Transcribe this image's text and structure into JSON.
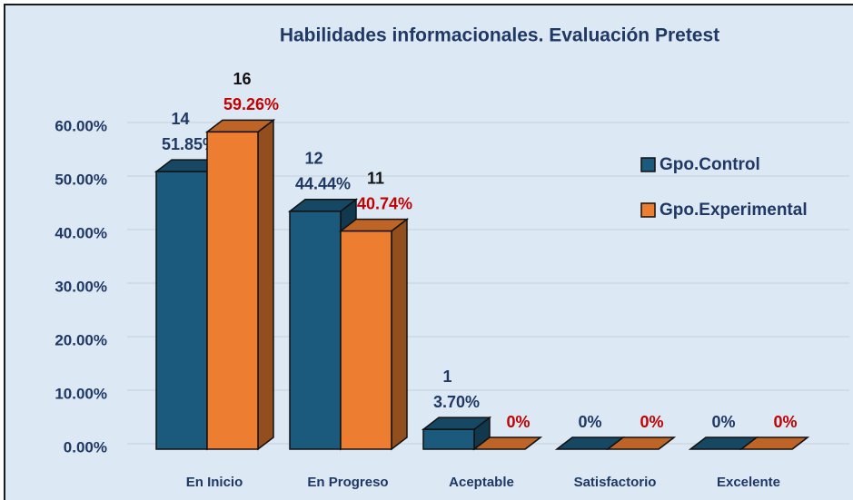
{
  "chart_data": {
    "type": "bar3d",
    "title": "Habilidades informacionales. Evaluación Pretest",
    "categories": [
      "En Inicio",
      "En Progreso",
      "Aceptable",
      "Satisfactorio",
      "Excelente"
    ],
    "series": [
      {
        "name": "Gpo.Control",
        "color": "#1b5a7c",
        "values": [
          51.85,
          44.44,
          3.7,
          0,
          0
        ],
        "value_labels": [
          "51.85%",
          "44.44%",
          "3.70%",
          "0%",
          "0%"
        ],
        "counts": [
          14,
          12,
          1,
          null,
          null
        ]
      },
      {
        "name": "Gpo.Experimental",
        "color": "#ed7d31",
        "values": [
          59.26,
          40.74,
          0,
          0,
          0
        ],
        "value_labels": [
          "59.26%",
          "40.74%",
          "0%",
          "0%",
          "0%"
        ],
        "counts": [
          16,
          11,
          null,
          null,
          null
        ]
      }
    ],
    "ylim": [
      0,
      60
    ],
    "yticks": [
      {
        "value": 0,
        "label": "0.00%"
      },
      {
        "value": 10,
        "label": "10.00%"
      },
      {
        "value": 20,
        "label": "20.00%"
      },
      {
        "value": 30,
        "label": "30.00%"
      },
      {
        "value": 40,
        "label": "40.00%"
      },
      {
        "value": 50,
        "label": "50.00%"
      },
      {
        "value": 60,
        "label": "60.00%"
      }
    ],
    "grid": true,
    "legend": "right"
  }
}
